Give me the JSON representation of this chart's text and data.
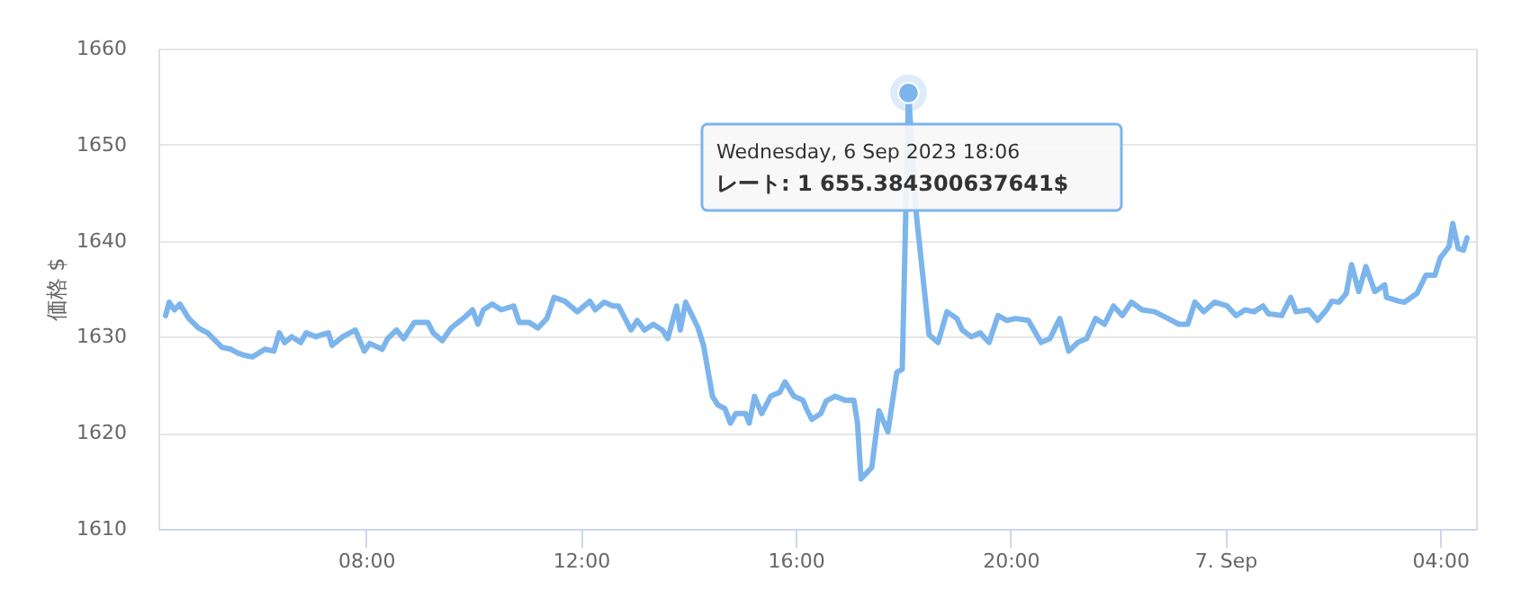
{
  "chart_data": {
    "type": "line",
    "ylabel": "価格 $",
    "xlim": [
      "2023-09-06T04:08",
      "2023-09-07T04:40"
    ],
    "ylim": [
      1610,
      1660
    ],
    "xticks": [
      {
        "value": "2023-09-06T08:00",
        "label": "08:00"
      },
      {
        "value": "2023-09-06T12:00",
        "label": "12:00"
      },
      {
        "value": "2023-09-06T16:00",
        "label": "16:00"
      },
      {
        "value": "2023-09-06T20:00",
        "label": "20:00"
      },
      {
        "value": "2023-09-07T00:00",
        "label": "7. Sep"
      },
      {
        "value": "2023-09-07T04:00",
        "label": "04:00"
      }
    ],
    "yticks": [
      1610,
      1620,
      1630,
      1640,
      1650,
      1660
    ],
    "grid": "y",
    "series": [
      {
        "color": "#7cb5ec",
        "x": [
          "2023-09-06T04:16",
          "2023-09-06T04:20",
          "2023-09-06T04:26",
          "2023-09-06T04:32",
          "2023-09-06T04:42",
          "2023-09-06T04:53",
          "2023-09-06T05:03",
          "2023-09-06T05:19",
          "2023-09-06T05:29",
          "2023-09-06T05:37",
          "2023-09-06T05:43",
          "2023-09-06T05:53",
          "2023-09-06T06:07",
          "2023-09-06T06:17",
          "2023-09-06T06:23",
          "2023-09-06T06:29",
          "2023-09-06T06:37",
          "2023-09-06T06:47",
          "2023-09-06T06:53",
          "2023-09-06T07:04",
          "2023-09-06T07:10",
          "2023-09-06T07:18",
          "2023-09-06T07:22",
          "2023-09-06T07:34",
          "2023-09-06T07:48",
          "2023-09-06T07:58",
          "2023-09-06T08:04",
          "2023-09-06T08:18",
          "2023-09-06T08:24",
          "2023-09-06T08:34",
          "2023-09-06T08:42",
          "2023-09-06T08:54",
          "2023-09-06T09:09",
          "2023-09-06T09:15",
          "2023-09-06T09:25",
          "2023-09-06T09:35",
          "2023-09-06T09:51",
          "2023-09-06T09:59",
          "2023-09-06T10:05",
          "2023-09-06T10:11",
          "2023-09-06T10:21",
          "2023-09-06T10:31",
          "2023-09-06T10:45",
          "2023-09-06T10:51",
          "2023-09-06T11:02",
          "2023-09-06T11:12",
          "2023-09-06T11:22",
          "2023-09-06T11:30",
          "2023-09-06T11:42",
          "2023-09-06T11:56",
          "2023-09-06T12:10",
          "2023-09-06T12:16",
          "2023-09-06T12:26",
          "2023-09-06T12:36",
          "2023-09-06T12:42",
          "2023-09-06T12:56",
          "2023-09-06T13:03",
          "2023-09-06T13:11",
          "2023-09-06T13:21",
          "2023-09-06T13:31",
          "2023-09-06T13:37",
          "2023-09-06T13:47",
          "2023-09-06T13:51",
          "2023-09-06T13:57",
          "2023-09-06T14:11",
          "2023-09-06T14:17",
          "2023-09-06T14:27",
          "2023-09-06T14:33",
          "2023-09-06T14:41",
          "2023-09-06T14:47",
          "2023-09-06T14:53",
          "2023-09-06T15:04",
          "2023-09-06T15:08",
          "2023-09-06T15:14",
          "2023-09-06T15:22",
          "2023-09-06T15:32",
          "2023-09-06T15:42",
          "2023-09-06T15:48",
          "2023-09-06T15:58",
          "2023-09-06T16:08",
          "2023-09-06T16:12",
          "2023-09-06T16:18",
          "2023-09-06T16:28",
          "2023-09-06T16:34",
          "2023-09-06T16:44",
          "2023-09-06T16:55",
          "2023-09-06T17:05",
          "2023-09-06T17:09",
          "2023-09-06T17:13",
          "2023-09-06T17:25",
          "2023-09-06T17:33",
          "2023-09-06T17:43",
          "2023-09-06T17:53",
          "2023-09-06T17:59",
          "2023-09-06T18:06",
          "2023-09-06T18:15",
          "2023-09-06T18:29",
          "2023-09-06T18:39",
          "2023-09-06T18:49",
          "2023-09-06T19:00",
          "2023-09-06T19:06",
          "2023-09-06T19:16",
          "2023-09-06T19:26",
          "2023-09-06T19:36",
          "2023-09-06T19:46",
          "2023-09-06T19:56",
          "2023-09-06T20:06",
          "2023-09-06T20:20",
          "2023-09-06T20:34",
          "2023-09-06T20:44",
          "2023-09-06T20:55",
          "2023-09-06T21:05",
          "2023-09-06T21:15",
          "2023-09-06T21:25",
          "2023-09-06T21:35",
          "2023-09-06T21:45",
          "2023-09-06T21:55",
          "2023-09-06T22:05",
          "2023-09-06T22:15",
          "2023-09-06T22:27",
          "2023-09-06T22:41",
          "2023-09-06T22:56",
          "2023-09-06T23:08",
          "2023-09-06T23:18",
          "2023-09-06T23:26",
          "2023-09-06T23:36",
          "2023-09-06T23:48",
          "2023-09-07T00:02",
          "2023-09-07T00:12",
          "2023-09-07T00:22",
          "2023-09-07T00:32",
          "2023-09-07T00:42",
          "2023-09-07T00:48",
          "2023-09-07T01:03",
          "2023-09-07T01:13",
          "2023-09-07T01:19",
          "2023-09-07T01:33",
          "2023-09-07T01:43",
          "2023-09-07T01:53",
          "2023-09-07T01:59",
          "2023-09-07T02:07",
          "2023-09-07T02:15",
          "2023-09-07T02:21",
          "2023-09-07T02:29",
          "2023-09-07T02:37",
          "2023-09-07T02:47",
          "2023-09-07T02:58",
          "2023-09-07T03:00",
          "2023-09-07T03:14",
          "2023-09-07T03:20",
          "2023-09-07T03:34",
          "2023-09-07T03:44",
          "2023-09-07T03:54",
          "2023-09-07T04:00",
          "2023-09-07T04:10",
          "2023-09-07T04:14",
          "2023-09-07T04:20",
          "2023-09-07T04:26",
          "2023-09-07T04:30"
        ],
        "values": [
          1632.2,
          1633.6,
          1632.8,
          1633.4,
          1631.9,
          1630.9,
          1630.4,
          1628.9,
          1628.7,
          1628.3,
          1628.1,
          1627.9,
          1628.7,
          1628.5,
          1630.4,
          1629.4,
          1630.0,
          1629.4,
          1630.4,
          1630.0,
          1630.2,
          1630.4,
          1629.1,
          1630.0,
          1630.7,
          1628.5,
          1629.3,
          1628.7,
          1629.8,
          1630.7,
          1629.8,
          1631.5,
          1631.5,
          1630.4,
          1629.6,
          1630.9,
          1632.1,
          1632.8,
          1631.3,
          1632.8,
          1633.4,
          1632.8,
          1633.2,
          1631.5,
          1631.5,
          1630.9,
          1631.9,
          1634.1,
          1633.7,
          1632.6,
          1633.7,
          1632.8,
          1633.6,
          1633.2,
          1633.2,
          1630.7,
          1631.7,
          1630.7,
          1631.3,
          1630.7,
          1629.8,
          1633.2,
          1630.7,
          1633.6,
          1630.9,
          1629.1,
          1623.8,
          1622.9,
          1622.5,
          1621.0,
          1622.0,
          1622.0,
          1621.0,
          1623.8,
          1622.0,
          1623.8,
          1624.2,
          1625.3,
          1623.8,
          1623.4,
          1622.5,
          1621.4,
          1622.0,
          1623.3,
          1623.8,
          1623.4,
          1623.4,
          1621.0,
          1615.2,
          1616.4,
          1622.3,
          1620.1,
          1626.3,
          1626.6,
          1655.384300637641,
          1642.5,
          1630.2,
          1629.4,
          1632.6,
          1631.9,
          1630.7,
          1630.0,
          1630.4,
          1629.4,
          1632.2,
          1631.7,
          1631.9,
          1631.7,
          1629.4,
          1629.8,
          1631.9,
          1628.5,
          1629.4,
          1629.8,
          1631.9,
          1631.3,
          1633.2,
          1632.2,
          1633.6,
          1632.8,
          1632.6,
          1631.9,
          1631.3,
          1631.3,
          1633.6,
          1632.6,
          1633.6,
          1633.2,
          1632.2,
          1632.8,
          1632.6,
          1633.2,
          1632.4,
          1632.2,
          1634.1,
          1632.6,
          1632.8,
          1631.7,
          1632.8,
          1633.7,
          1633.6,
          1634.5,
          1637.5,
          1634.7,
          1637.3,
          1634.7,
          1635.4,
          1634.1,
          1633.7,
          1633.6,
          1634.5,
          1636.4,
          1636.4,
          1638.2,
          1639.4,
          1641.8,
          1639.2,
          1639.0,
          1640.3
        ]
      }
    ],
    "annotations": [
      "Wednesday, 6 Sep 2023 18:06",
      "レート: 1 655.384300637641$"
    ]
  }
}
